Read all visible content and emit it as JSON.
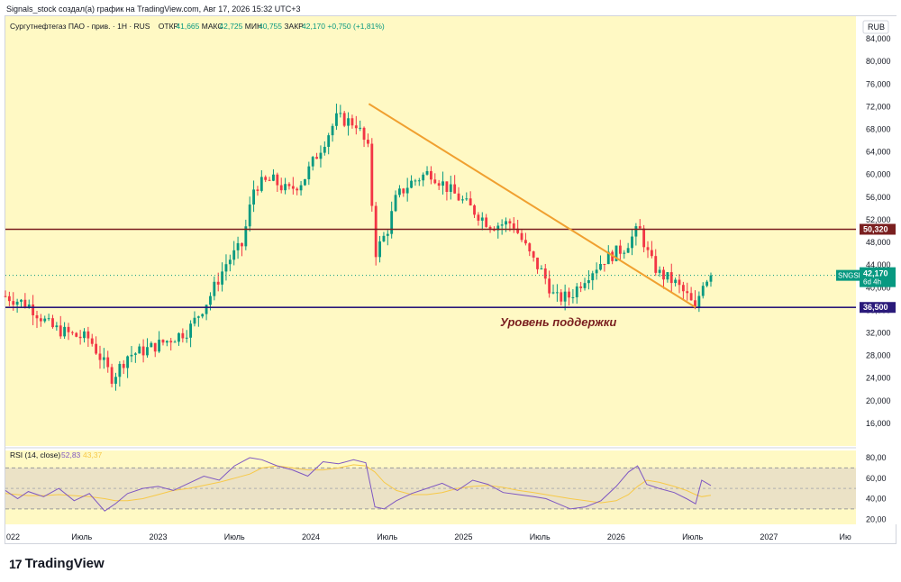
{
  "header": {
    "caption": "Signals_stock создал(а) график на TradingView.com, Авг 17, 2026 15:32 UTC+3"
  },
  "legend": {
    "name": "Сургутнефтегаз ПАО - прив. · 1Н · RUS",
    "o_label": "ОТКР",
    "o": "41,665",
    "h_label": "МАКС",
    "h": "42,725",
    "l_label": "МИН",
    "l": "40,755",
    "c_label": "ЗАКР",
    "c": "42,170",
    "chg": "+0,750 (+1,81%)"
  },
  "currency": "RUB",
  "price_badge": {
    "ticker": "SNGSP",
    "value": "42,170",
    "countdown": "6d 4h"
  },
  "levels": [
    {
      "label": "50,320",
      "value": 50.32,
      "color": "#7a1f1f"
    },
    {
      "label": "36,500",
      "value": 36.5,
      "color": "#2a1a7a"
    }
  ],
  "annotation": "Уровень поддержки",
  "rsi": {
    "label": "RSI (14, close)",
    "value": "52,83",
    "ma": "43,37"
  },
  "brand": "TradingView",
  "colors": {
    "up": "#089981",
    "down": "#f23645",
    "bg": "#fff9c4",
    "trend": "#f0a030",
    "rsi": "#7e57c2",
    "rsi_ma": "#f7c948"
  },
  "chart_data": {
    "type": "candlestick",
    "title": "Сургутнефтегаз ПАО - прив. · 1Н · RUS",
    "xlabel": "",
    "ylabel": "RUB",
    "ylim": [
      12,
      88
    ],
    "y_ticks": [
      "16,000",
      "20,000",
      "24,000",
      "28,000",
      "32,000",
      "36,000",
      "40,000",
      "44,000",
      "48,000",
      "52,000",
      "56,000",
      "60,000",
      "64,000",
      "68,000",
      "72,000",
      "76,000",
      "80,000",
      "84,000"
    ],
    "y_tick_values": [
      16,
      20,
      24,
      28,
      32,
      36,
      40,
      44,
      48,
      52,
      56,
      60,
      64,
      68,
      72,
      76,
      80,
      84
    ],
    "x_ticks": [
      "022",
      "Июль",
      "2023",
      "Июль",
      "2024",
      "Июль",
      "2025",
      "Июль",
      "2026",
      "Июль",
      "2027",
      "Ию"
    ],
    "x_tick_values": [
      2022.0,
      2022.5,
      2023.0,
      2023.5,
      2024.0,
      2024.5,
      2025.0,
      2025.5,
      2026.0,
      2026.5,
      2027.0,
      2027.5
    ],
    "xlim": [
      2022.0,
      2027.57
    ],
    "series": [
      {
        "name": "SNGSP",
        "x": [
          2022.0,
          2022.15,
          2022.3,
          2022.45,
          2022.55,
          2022.7,
          2022.8,
          2022.92,
          2023.05,
          2023.2,
          2023.33,
          2023.45,
          2023.55,
          2023.63,
          2023.75,
          2023.85,
          2023.95,
          2024.05,
          2024.17,
          2024.3,
          2024.38,
          2024.42,
          2024.5,
          2024.56,
          2024.65,
          2024.78,
          2024.92,
          2025.05,
          2025.18,
          2025.32,
          2025.45,
          2025.52,
          2025.6,
          2025.7,
          2025.8,
          2025.92,
          2026.05,
          2026.15,
          2026.22,
          2026.28,
          2026.38,
          2026.48,
          2026.52,
          2026.56,
          2026.62
        ],
        "close": [
          38.5,
          37.0,
          33.0,
          31.5,
          31.0,
          24.0,
          28.0,
          29.0,
          30.5,
          32.5,
          38.0,
          44.5,
          47.5,
          58.0,
          59.0,
          57.0,
          59.0,
          64.0,
          70.0,
          69.0,
          64.0,
          46.0,
          50.0,
          56.0,
          58.5,
          60.5,
          57.0,
          54.0,
          51.0,
          51.5,
          45.0,
          42.5,
          38.0,
          38.5,
          42.0,
          45.0,
          47.0,
          50.5,
          45.0,
          42.5,
          41.0,
          38.0,
          35.5,
          41.0,
          42.17
        ]
      }
    ],
    "trendline": {
      "x": [
        2024.38,
        2026.52
      ],
      "y": [
        72.5,
        36.5
      ]
    },
    "rsi": {
      "ylim": [
        15,
        87
      ],
      "y_ticks": [
        "20,00",
        "40,00",
        "60,00",
        "80,00"
      ],
      "y_tick_values": [
        20,
        40,
        60,
        80
      ],
      "bands": [
        30,
        70
      ],
      "x": [
        2022.0,
        2022.08,
        2022.15,
        2022.25,
        2022.35,
        2022.45,
        2022.55,
        2022.65,
        2022.72,
        2022.8,
        2022.9,
        2023.0,
        2023.1,
        2023.2,
        2023.3,
        2023.4,
        2023.5,
        2023.6,
        2023.68,
        2023.78,
        2023.88,
        2023.98,
        2024.08,
        2024.18,
        2024.28,
        2024.36,
        2024.42,
        2024.48,
        2024.56,
        2024.66,
        2024.76,
        2024.86,
        2024.96,
        2025.06,
        2025.16,
        2025.26,
        2025.36,
        2025.46,
        2025.54,
        2025.62,
        2025.7,
        2025.8,
        2025.9,
        2026.0,
        2026.08,
        2026.14,
        2026.2,
        2026.28,
        2026.38,
        2026.46,
        2026.52,
        2026.56,
        2026.62
      ],
      "values": [
        48,
        40,
        47,
        42,
        50,
        38,
        45,
        28,
        35,
        45,
        50,
        52,
        48,
        55,
        62,
        58,
        72,
        80,
        78,
        72,
        68,
        62,
        76,
        74,
        78,
        75,
        32,
        30,
        38,
        45,
        50,
        55,
        48,
        58,
        54,
        46,
        44,
        42,
        40,
        35,
        30,
        32,
        38,
        52,
        66,
        72,
        54,
        50,
        46,
        40,
        35,
        58,
        52.83
      ],
      "ma": [
        45,
        44,
        43,
        43,
        44,
        43,
        42,
        40,
        38,
        38,
        40,
        44,
        48,
        50,
        53,
        56,
        60,
        64,
        70,
        72,
        70,
        68,
        68,
        70,
        73,
        72,
        66,
        56,
        48,
        44,
        44,
        46,
        50,
        52,
        53,
        51,
        48,
        46,
        44,
        42,
        40,
        38,
        36,
        38,
        44,
        52,
        58,
        56,
        52,
        48,
        44,
        42,
        43.37
      ]
    }
  }
}
